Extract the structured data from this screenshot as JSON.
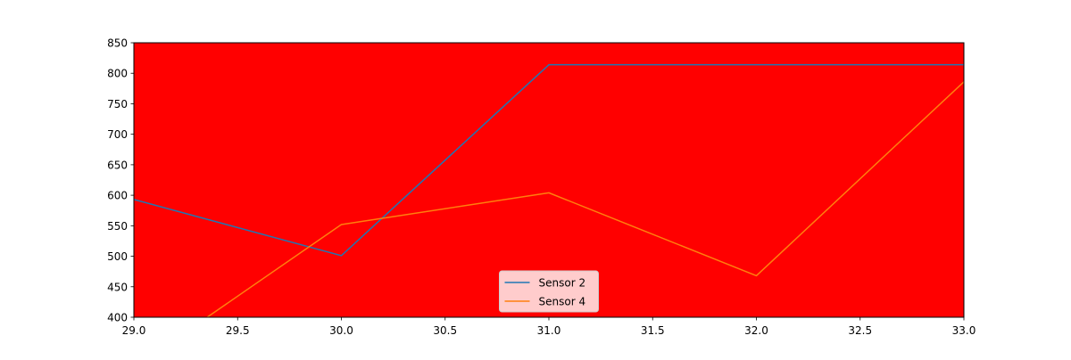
{
  "chart_data": {
    "type": "line",
    "title": "",
    "xlabel": "",
    "ylabel": "",
    "xlim": [
      29.0,
      33.0
    ],
    "ylim": [
      400,
      850
    ],
    "xticks": [
      "29.0",
      "29.5",
      "30.0",
      "30.5",
      "31.0",
      "31.5",
      "32.0",
      "32.5",
      "33.0"
    ],
    "yticks": [
      "400",
      "450",
      "500",
      "550",
      "600",
      "650",
      "700",
      "750",
      "800",
      "850"
    ],
    "x": [
      29,
      30,
      31,
      32,
      33
    ],
    "series": [
      {
        "name": "Sensor 2",
        "color": "#1f77b4",
        "values": [
          593,
          501,
          814,
          814,
          814
        ]
      },
      {
        "name": "Sensor 4",
        "color": "#ff7f0e",
        "values": [
          317,
          552,
          604,
          468,
          786
        ]
      }
    ],
    "legend": "lower center",
    "grid": false,
    "plot_background": "#ff0000"
  }
}
